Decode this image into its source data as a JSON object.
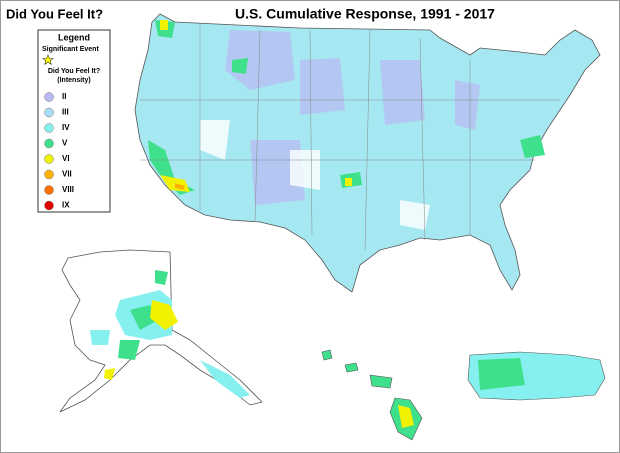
{
  "header": {
    "left_title": "Did You Feel It?",
    "title": "U.S. Cumulative Response, 1991 - 2017"
  },
  "legend": {
    "title": "Legend",
    "event_label": "Significant Event",
    "intensity_title": "Did You Feel It?",
    "intensity_subtitle": "(Intensity)",
    "items": [
      {
        "label": "II",
        "color": "#b9b9f2"
      },
      {
        "label": "III",
        "color": "#a6dcf5"
      },
      {
        "label": "IV",
        "color": "#86f0f0"
      },
      {
        "label": "V",
        "color": "#3fe08c"
      },
      {
        "label": "VI",
        "color": "#f2f200"
      },
      {
        "label": "VII",
        "color": "#ffb000"
      },
      {
        "label": "VIII",
        "color": "#ff7000"
      },
      {
        "label": "IX",
        "color": "#e00000"
      }
    ]
  }
}
